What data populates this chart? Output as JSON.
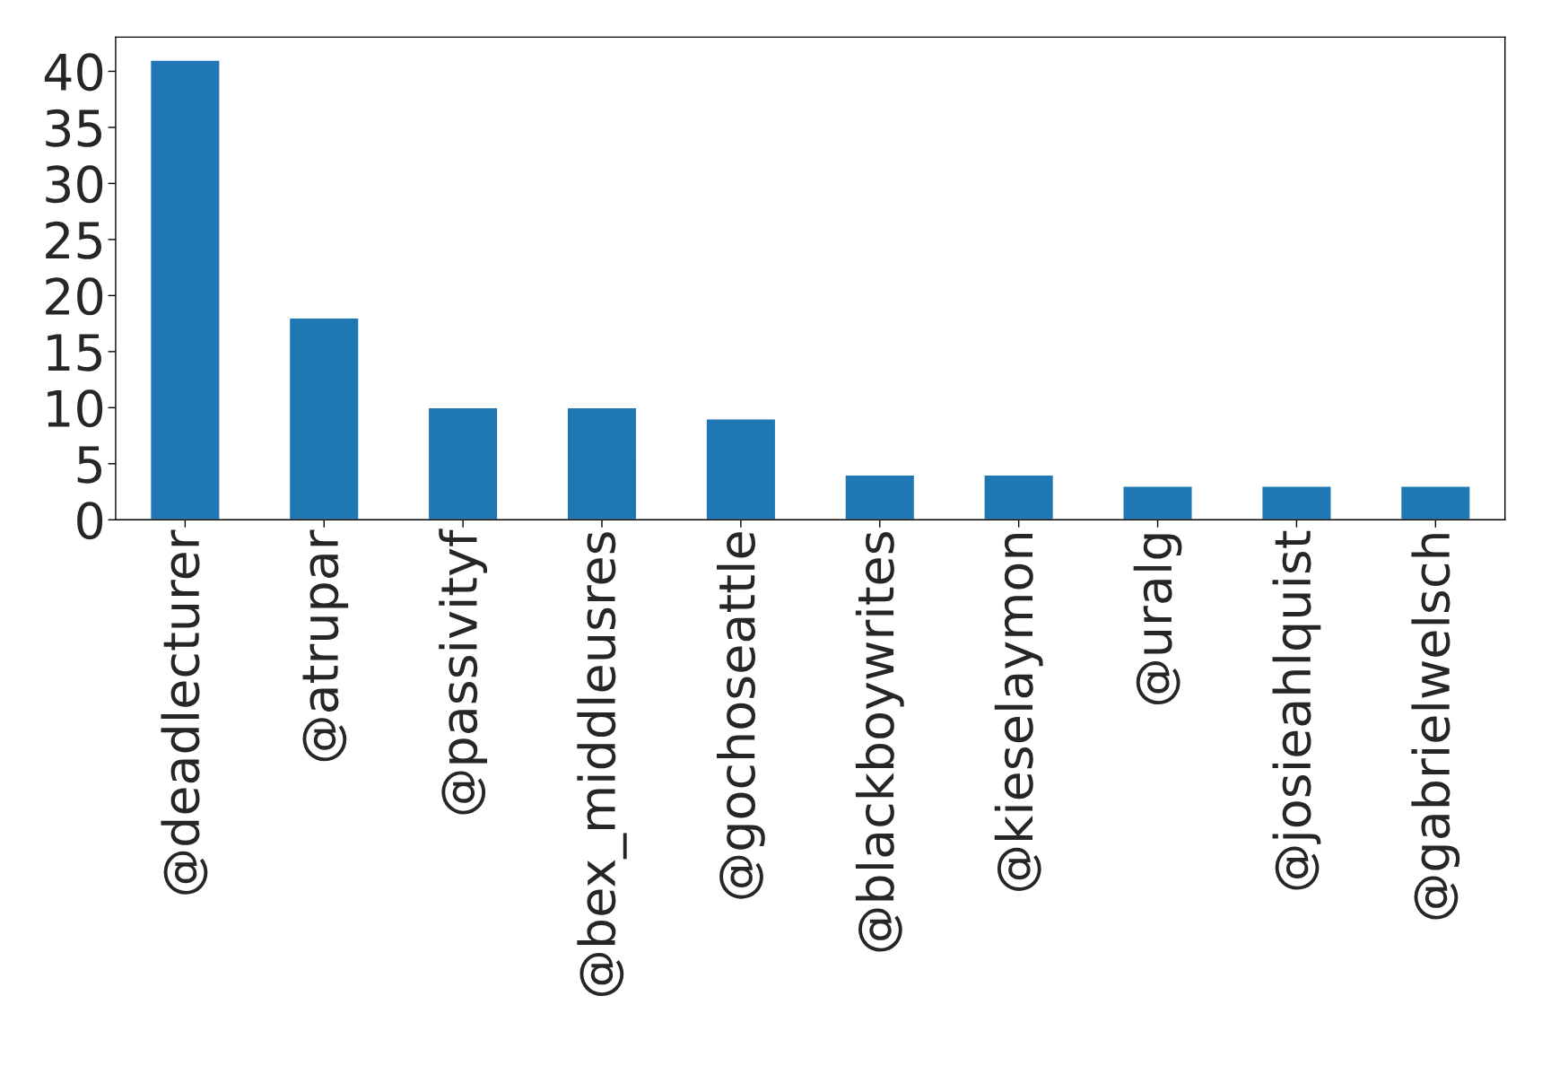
{
  "chart_data": {
    "type": "bar",
    "categories": [
      "@deadlecturer",
      "@atrupar",
      "@passivityf",
      "@bex_middleusres",
      "@gochoseattle",
      "@blackboywrites",
      "@kieselaymon",
      "@uralg",
      "@josieahlquist",
      "@gabrielwelsch"
    ],
    "values": [
      41,
      18,
      10,
      10,
      9,
      4,
      4,
      3,
      3,
      3
    ],
    "color": "#1f77b4",
    "ylim": [
      0,
      43.05
    ],
    "yticks": [
      0,
      5,
      10,
      15,
      20,
      25,
      30,
      35,
      40
    ],
    "grid": false,
    "legend": false
  }
}
